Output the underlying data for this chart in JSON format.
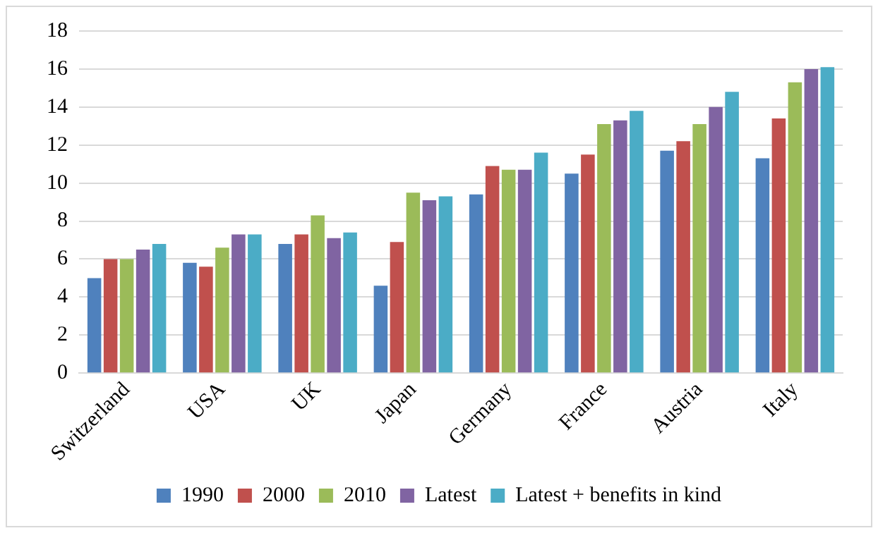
{
  "chart_data": {
    "type": "bar",
    "categories": [
      "Switzerland",
      "USA",
      "UK",
      "Japan",
      "Germany",
      "France",
      "Austria",
      "Italy"
    ],
    "series": [
      {
        "name": "1990",
        "color": "#4f81bd",
        "values": [
          5.0,
          5.8,
          6.8,
          4.6,
          9.4,
          10.5,
          11.7,
          11.3
        ]
      },
      {
        "name": "2000",
        "color": "#c0504d",
        "values": [
          6.0,
          5.6,
          7.3,
          6.9,
          10.9,
          11.5,
          12.2,
          13.4
        ]
      },
      {
        "name": "2010",
        "color": "#9bbb59",
        "values": [
          6.0,
          6.6,
          8.3,
          9.5,
          10.7,
          13.1,
          13.1,
          15.3
        ]
      },
      {
        "name": "Latest",
        "color": "#8064a2",
        "values": [
          6.5,
          7.3,
          7.1,
          9.1,
          10.7,
          13.3,
          14.0,
          16.0
        ]
      },
      {
        "name": "Latest + benefits in kind",
        "color": "#4bacc6",
        "values": [
          6.8,
          7.3,
          7.4,
          9.3,
          11.6,
          13.8,
          14.8,
          16.1
        ]
      }
    ],
    "ylim": [
      0,
      18
    ],
    "yticks": [
      0,
      2,
      4,
      6,
      8,
      10,
      12,
      14,
      16,
      18
    ],
    "grid": "y",
    "legend": "bottom"
  }
}
